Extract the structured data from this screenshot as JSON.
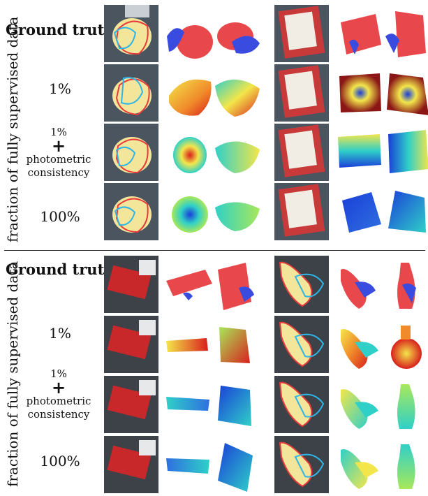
{
  "sections": [
    {
      "side_label": "fraction of fully supervised data",
      "rows": [
        {
          "label": "Ground truth"
        },
        {
          "label": "1%"
        },
        {
          "label_top": "1%",
          "label_plus": "+",
          "label_l1": "photometric",
          "label_l2": "consistency"
        },
        {
          "label": "100%"
        }
      ]
    },
    {
      "side_label": "fraction of fully supervised data",
      "rows": [
        {
          "label": "Ground truth"
        },
        {
          "label": "1%"
        },
        {
          "label_top": "1%",
          "label_plus": "+",
          "label_l1": "photometric",
          "label_l2": "consistency"
        },
        {
          "label": "100%"
        }
      ]
    }
  ],
  "colors": {
    "gt_object": "#e8484b",
    "gt_hand": "#3a4be0",
    "contour_hand": "#2fb6e8",
    "contour_object": "#e83a3a",
    "heat_hot": "#d8201c",
    "heat_mid": "#f3e64a",
    "heat_cool": "#2fd0c8",
    "heat_cold": "#1a3fd8"
  }
}
